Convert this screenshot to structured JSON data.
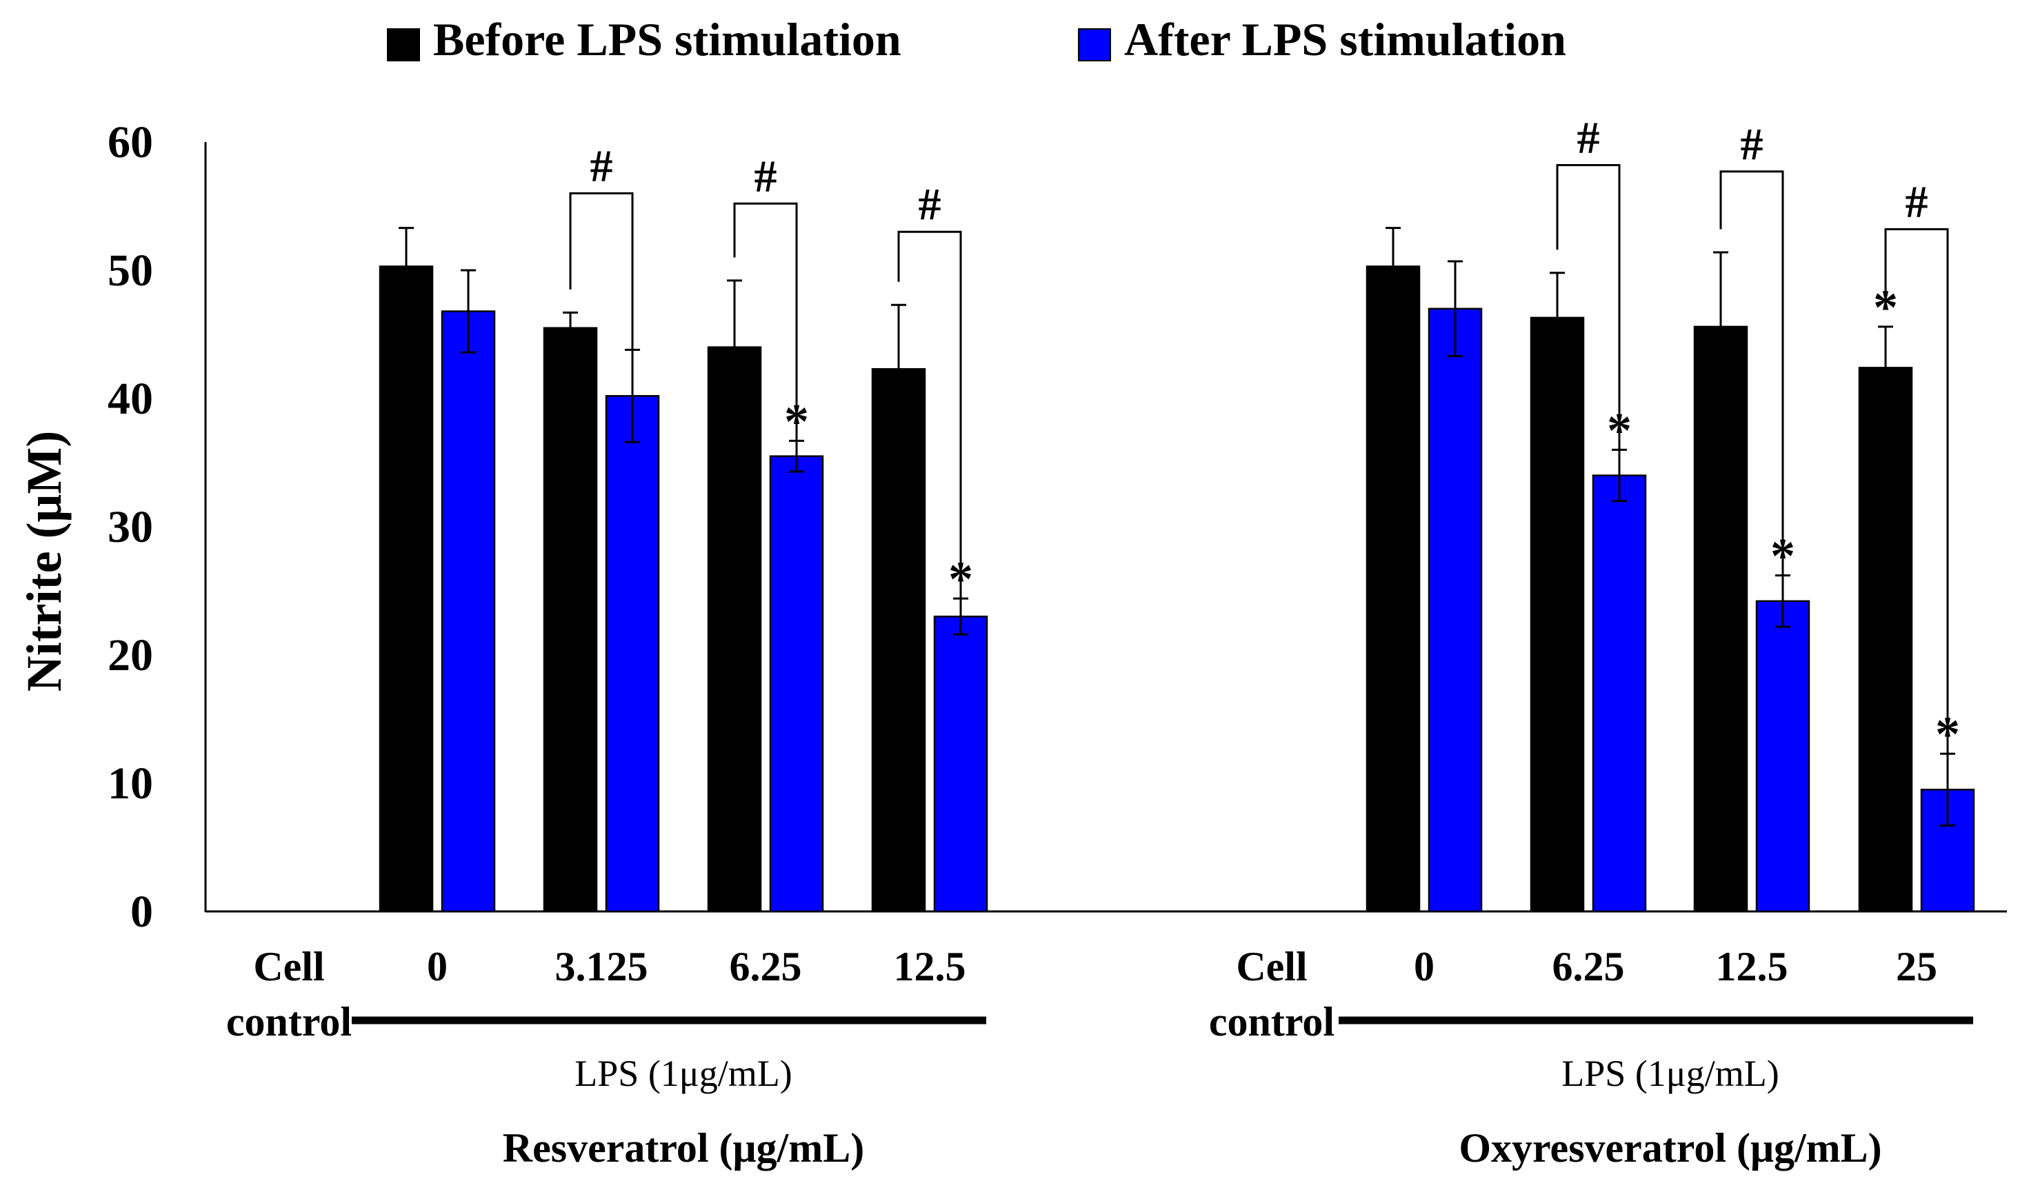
{
  "chart_data": {
    "type": "bar",
    "ylabel": "Nitrite (μM)",
    "ylim": [
      0,
      60
    ],
    "yticks": [
      "0",
      "10",
      "20",
      "30",
      "40",
      "50",
      "60"
    ],
    "legend": {
      "placement": "top",
      "entries": [
        {
          "name": "Before LPS stimulation",
          "color": "#000000"
        },
        {
          "name": "After LPS stimulation",
          "color": "#0000FF"
        }
      ]
    },
    "groups": [
      {
        "treatment": "Resveratrol (μg/mL)",
        "lps_label": "LPS (1μg/mL)",
        "categories": [
          "Cell control",
          "0",
          "3.125",
          "6.25",
          "12.5"
        ],
        "series": [
          {
            "name": "Before LPS stimulation",
            "values": [
              0,
              50.3,
              45.5,
              44.0,
              42.3
            ],
            "errors": [
              0,
              3.0,
              1.2,
              5.2,
              5.0
            ]
          },
          {
            "name": "After LPS stimulation",
            "values": [
              0,
              46.8,
              40.2,
              35.5,
              23.0
            ],
            "errors": [
              0,
              3.2,
              3.6,
              1.2,
              1.4
            ]
          }
        ],
        "stars": [
          {
            "series": 1,
            "category": 3,
            "text": "*"
          },
          {
            "series": 1,
            "category": 4,
            "text": "*"
          }
        ],
        "brackets": [
          {
            "category": 2,
            "text": "#",
            "top": 56.0
          },
          {
            "category": 3,
            "text": "#",
            "top": 55.2
          },
          {
            "category": 4,
            "text": "#",
            "top": 53.0
          }
        ]
      },
      {
        "treatment": "Oxyresveratrol (μg/mL)",
        "lps_label": "LPS (1μg/mL)",
        "categories": [
          "Cell control",
          "0",
          "6.25",
          "12.5",
          "25"
        ],
        "series": [
          {
            "name": "Before LPS stimulation",
            "values": [
              0,
              50.3,
              46.3,
              45.6,
              42.4
            ],
            "errors": [
              0,
              3.0,
              3.5,
              5.8,
              3.2
            ]
          },
          {
            "name": "After LPS stimulation",
            "values": [
              0,
              47.0,
              34.0,
              24.2,
              9.5
            ],
            "errors": [
              0,
              3.7,
              2.0,
              2.0,
              2.8
            ]
          }
        ],
        "stars": [
          {
            "series": 0,
            "category": 4,
            "text": "*"
          },
          {
            "series": 1,
            "category": 2,
            "text": "*"
          },
          {
            "series": 1,
            "category": 3,
            "text": "*"
          },
          {
            "series": 1,
            "category": 4,
            "text": "*"
          }
        ],
        "brackets": [
          {
            "category": 2,
            "text": "#",
            "top": 58.2
          },
          {
            "category": 3,
            "text": "#",
            "top": 57.7
          },
          {
            "category": 4,
            "text": "#",
            "top": 53.2
          }
        ]
      }
    ]
  }
}
